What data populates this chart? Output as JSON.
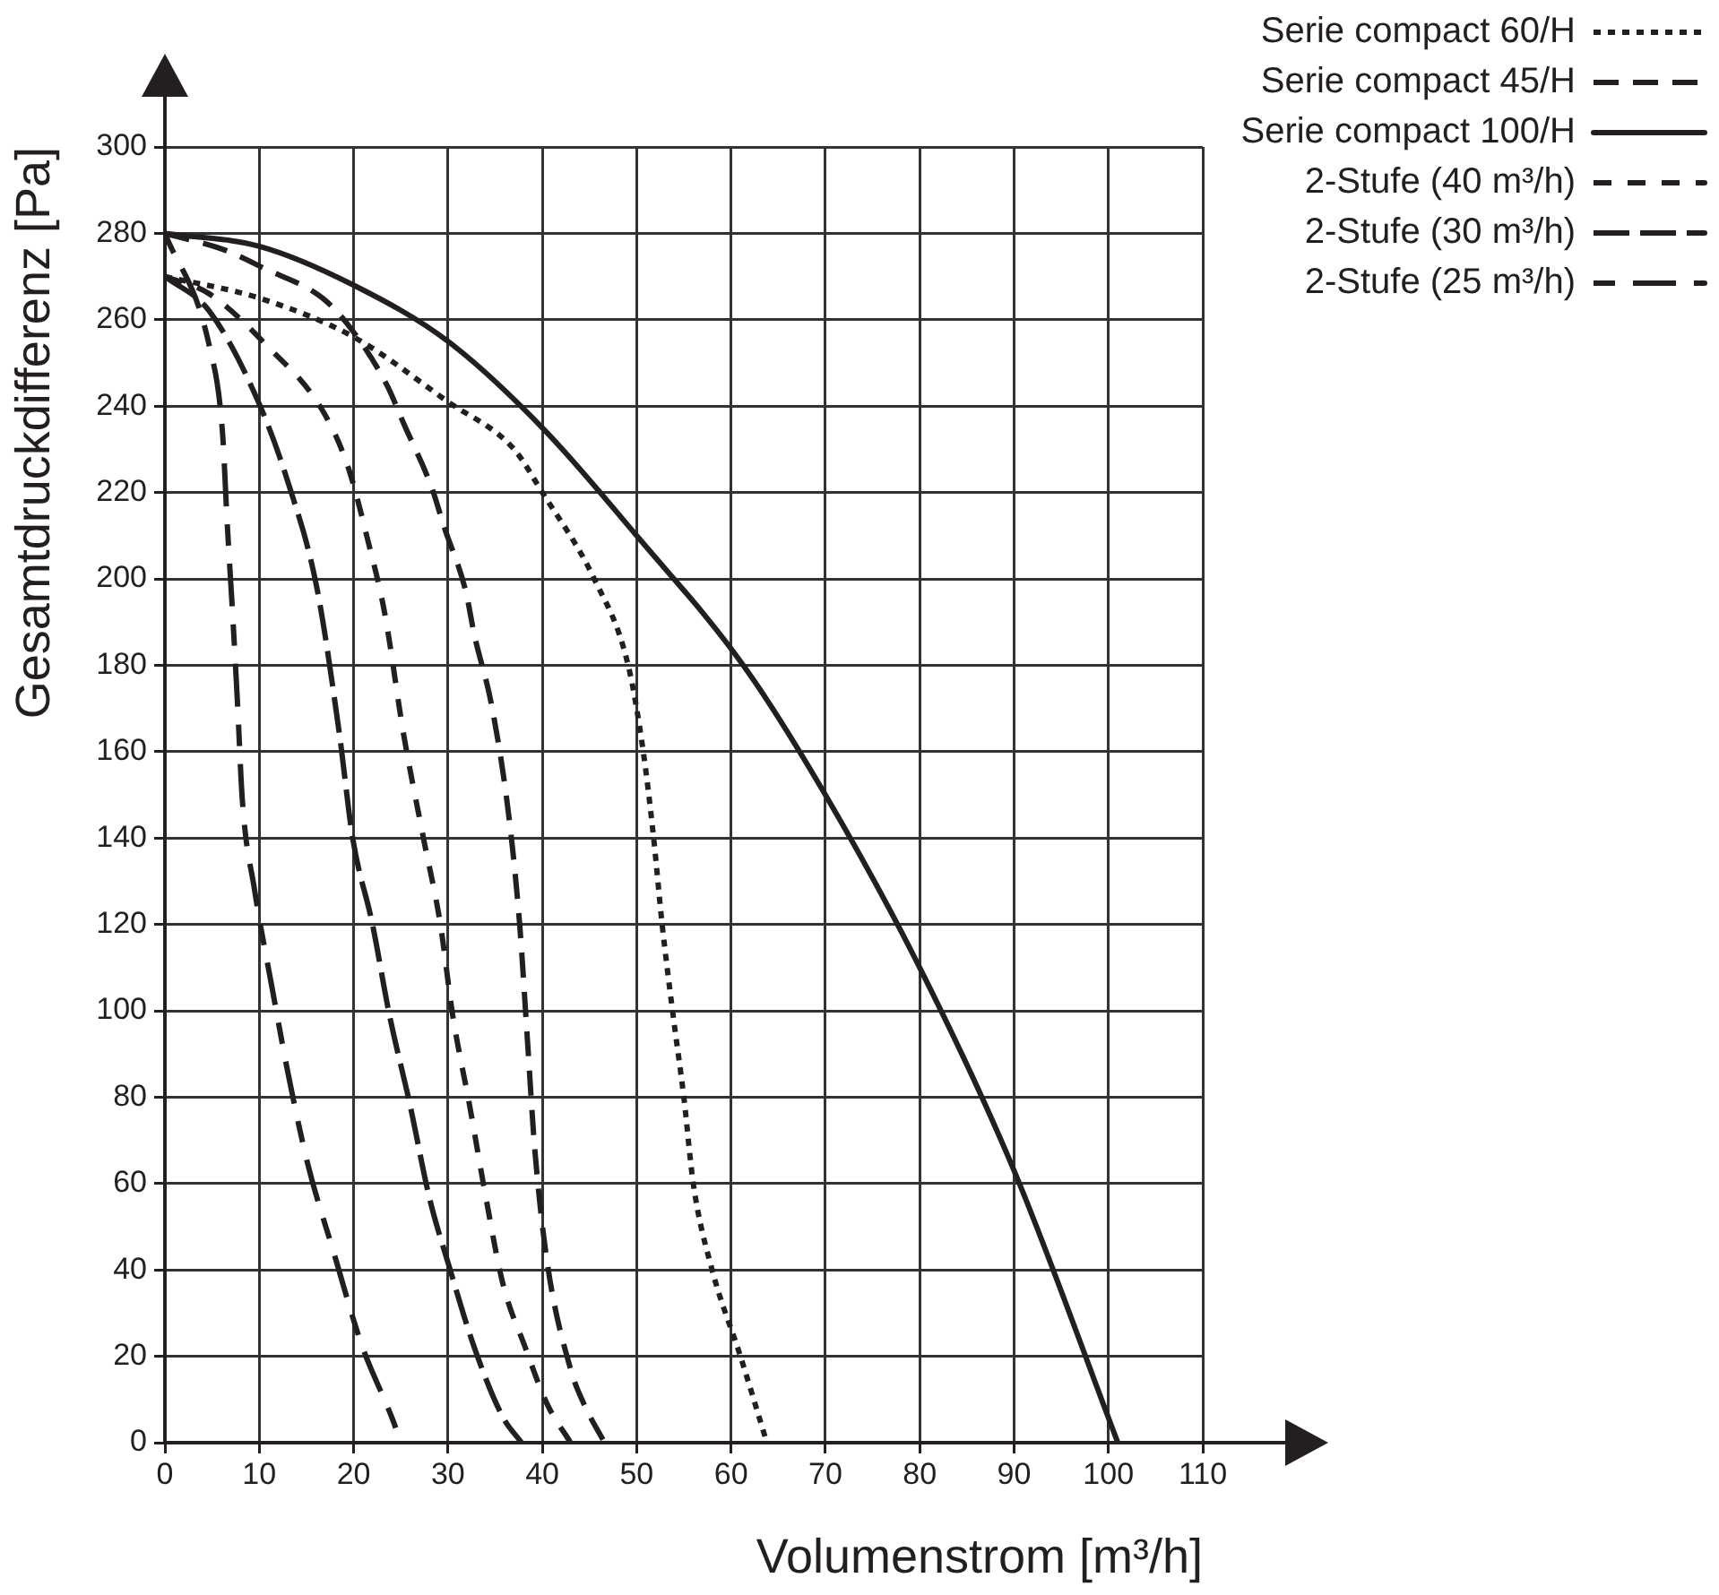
{
  "chart_data": {
    "type": "line",
    "xlabel": "Volumenstrom [m³/h]",
    "ylabel": "Gesamtdruckdifferenz [Pa]",
    "xlim": [
      0,
      110
    ],
    "xticks": [
      0,
      10,
      20,
      30,
      40,
      50,
      60,
      70,
      80,
      90,
      100,
      110
    ],
    "ylim": [
      0,
      300
    ],
    "yticks": [
      0,
      20,
      40,
      60,
      80,
      100,
      120,
      140,
      160,
      180,
      200,
      220,
      240,
      260,
      280,
      300
    ],
    "grid": true,
    "legend": "top right",
    "marker": "none",
    "series": [
      {
        "name": "Serie compact 60/H",
        "color": "#231f20",
        "line_style": "dotted",
        "x": [
          0,
          10,
          20,
          30,
          37,
          40,
          45.5,
          49.1,
          50.7,
          51.8,
          52.7,
          53.8,
          55,
          56,
          58,
          61,
          63.8
        ],
        "values": [
          270,
          265,
          256,
          241,
          230,
          220,
          200,
          180,
          160,
          140,
          120,
          100,
          80,
          60,
          40,
          20,
          0
        ]
      },
      {
        "name": "Serie compact 45/H",
        "color": "#231f20",
        "line_style": "dashed",
        "x": [
          0,
          6.5,
          10.4,
          16.7,
          19.7,
          23.5,
          25.3,
          28.3,
          29.6,
          31.9,
          32.8,
          34.6,
          36.4,
          37.6,
          38.4,
          39.2,
          40.5,
          43,
          44.4,
          46.6
        ],
        "values": [
          280,
          276,
          272,
          265,
          258,
          245,
          236,
          221,
          212,
          197,
          187,
          171,
          146,
          120,
          94,
          68,
          42,
          17,
          9,
          0
        ]
      },
      {
        "name": "Serie compact 100/H",
        "color": "#231f20",
        "line_style": "solid",
        "x": [
          0,
          10,
          20,
          30,
          40,
          50,
          61.3,
          70,
          80,
          90,
          101
        ],
        "values": [
          280,
          277,
          268,
          255,
          235,
          210,
          180,
          150,
          110,
          63,
          0
        ]
      },
      {
        "name": "2-Stufe (40 m³/h)",
        "color": "#231f20",
        "line_style": "dashed",
        "x": [
          0,
          4.7,
          10.8,
          16.7,
          19.4,
          21.5,
          23.3,
          25.3,
          27.4,
          29.2,
          30.5,
          32.3,
          34,
          35.8,
          38.2,
          40.5,
          43
        ],
        "values": [
          270,
          266,
          254,
          239,
          226,
          209,
          192,
          164,
          140,
          120,
          99,
          78,
          57,
          37,
          22,
          9,
          0
        ]
      },
      {
        "name": "2-Stufe (30 m³/h)",
        "color": "#231f20",
        "line_style": "dashed",
        "x": [
          0,
          4.7,
          9.9,
          13.1,
          16.1,
          18.5,
          19.9,
          22,
          23.8,
          26,
          28,
          30.1,
          32.8,
          35.8,
          37.8
        ],
        "values": [
          270,
          262,
          241,
          222,
          198,
          164,
          140,
          120,
          99,
          78,
          57,
          41,
          22,
          6,
          0
        ]
      },
      {
        "name": "2-Stufe (25 m³/h)",
        "color": "#231f20",
        "line_style": "dashed",
        "x": [
          0,
          4.7,
          6.1,
          6.6,
          7.2,
          7.7,
          8.2,
          9.5,
          11.3,
          13.1,
          15.2,
          17.9,
          20.8,
          24.2,
          25
        ],
        "values": [
          280,
          254,
          234,
          213,
          191,
          171,
          149,
          128,
          106,
          85,
          64,
          44,
          23,
          5,
          0
        ]
      }
    ]
  }
}
